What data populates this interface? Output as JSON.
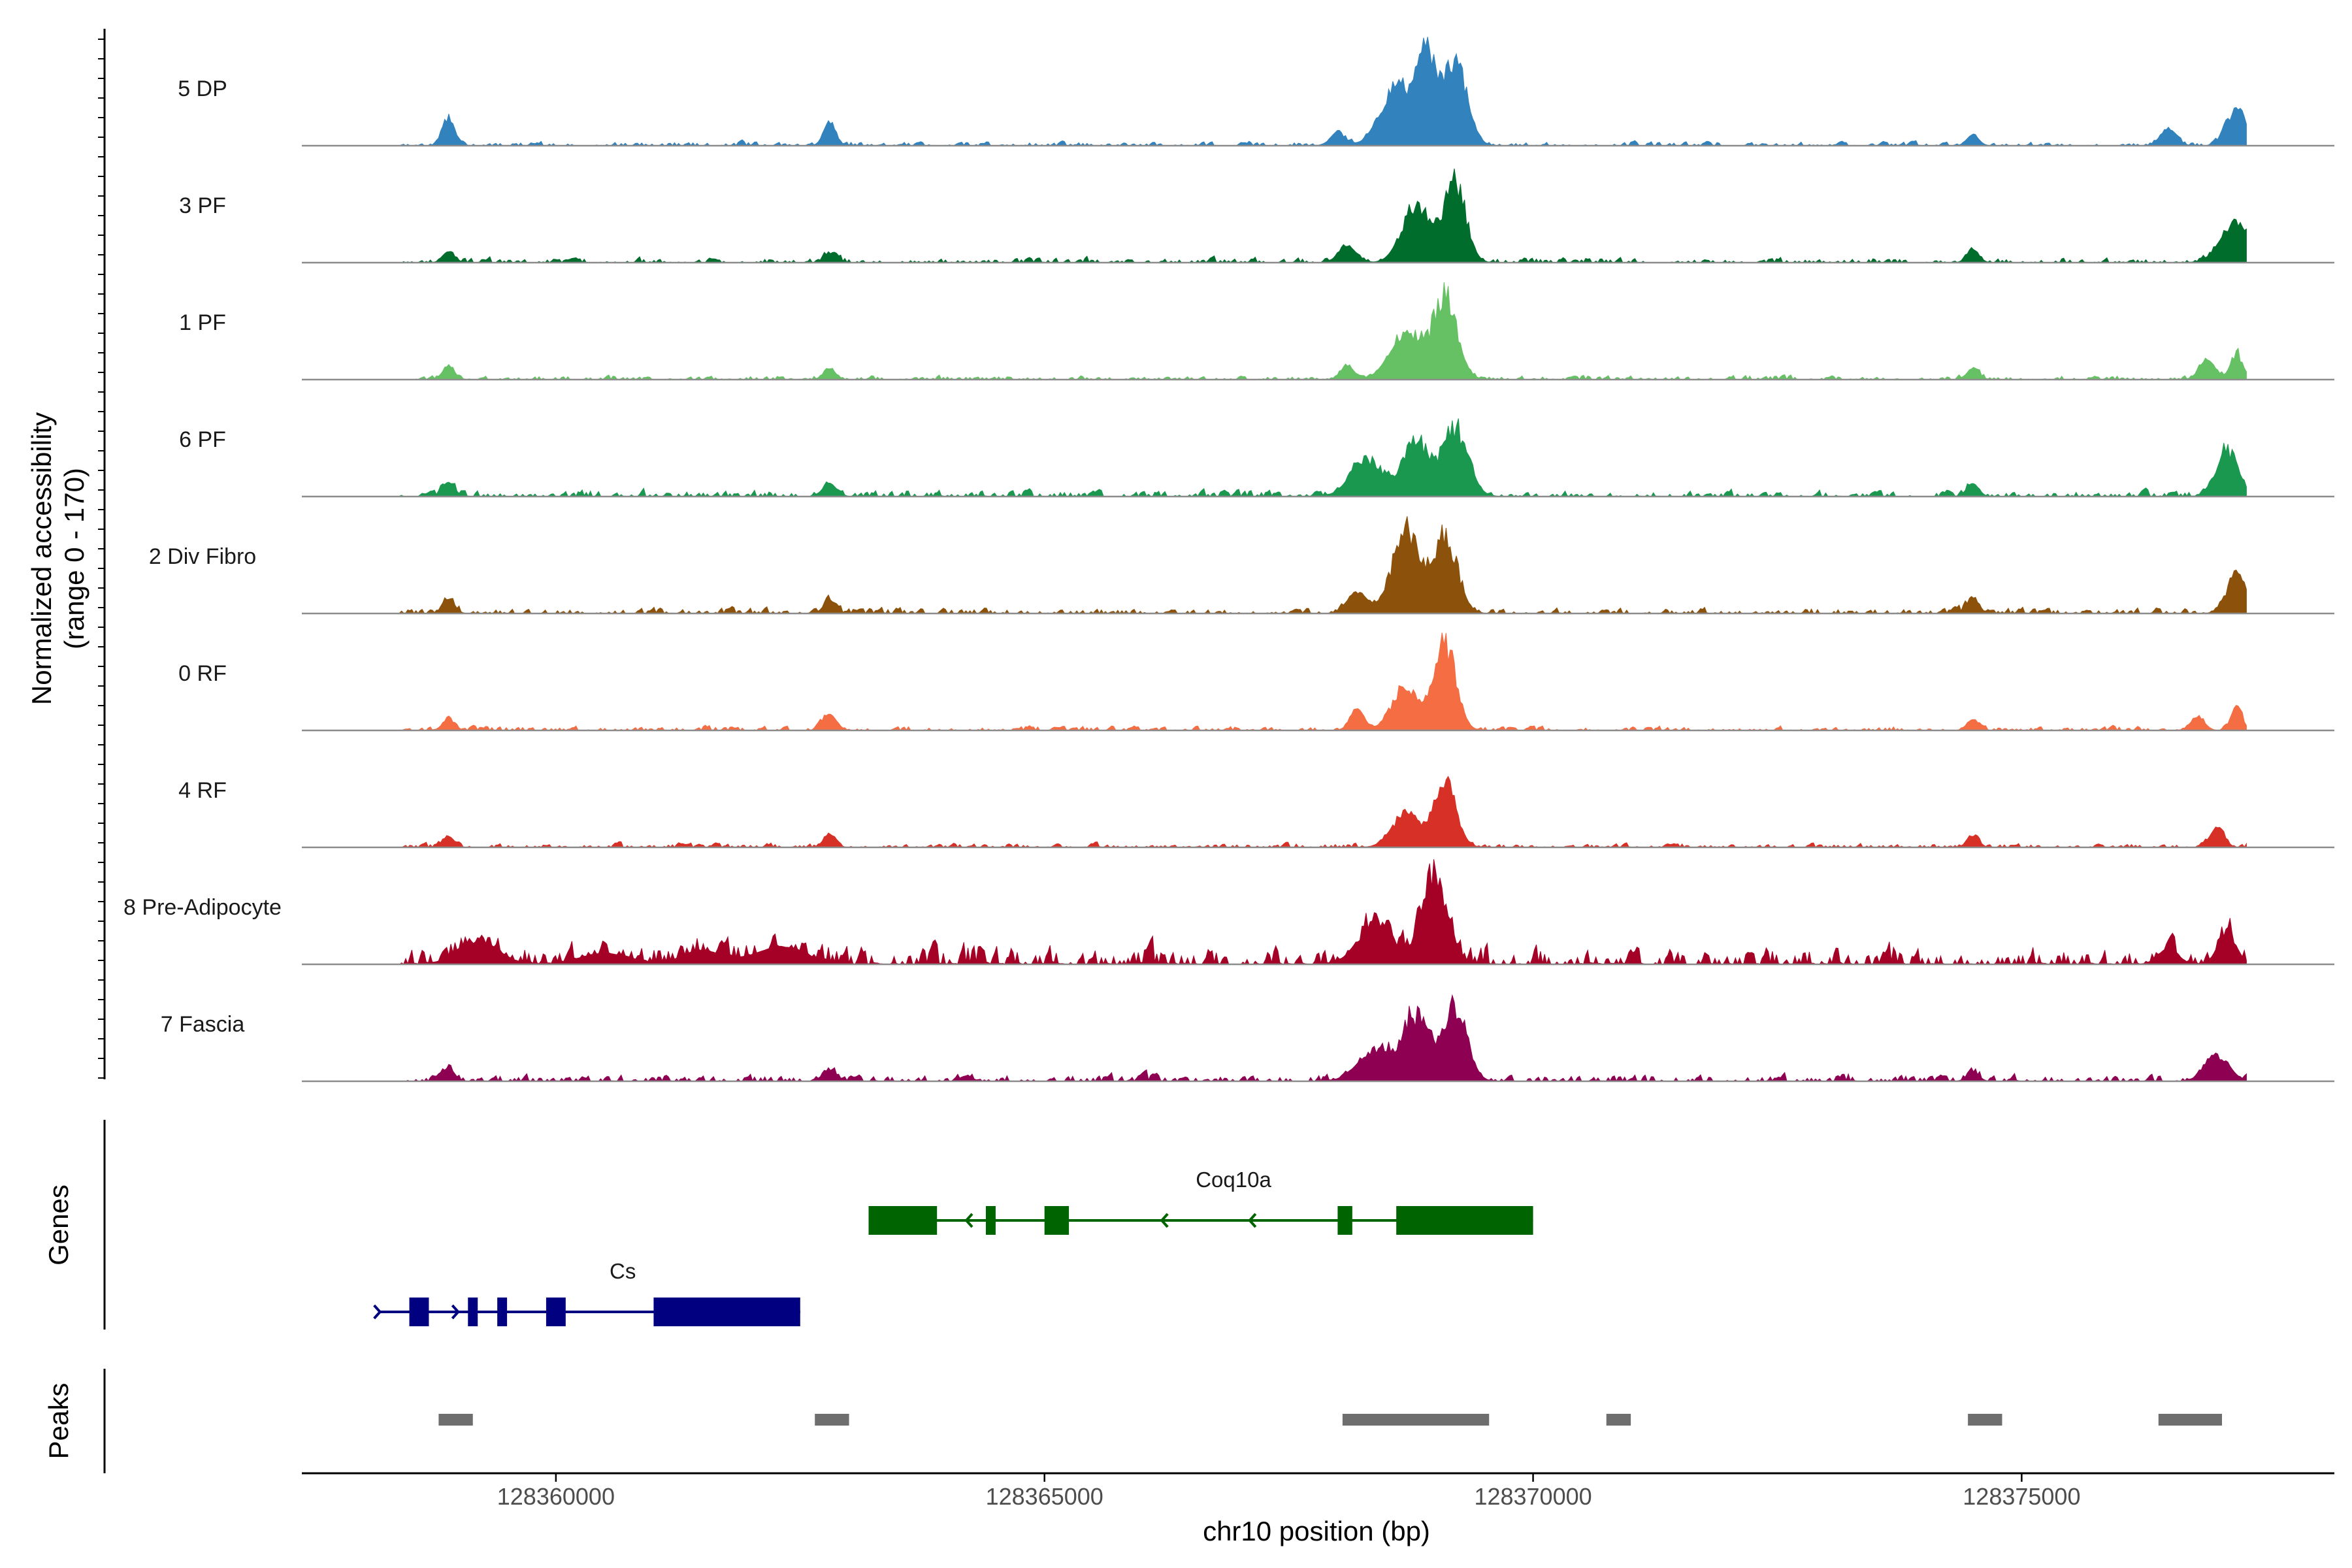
{
  "chart_data": {
    "type": "area",
    "ylabel": "Normalized accessibility",
    "ylabel_range": "(range 0 - 170)",
    "y_range": [
      0,
      170
    ],
    "xlabel": "chr10 position (bp)",
    "x_range": [
      128357400,
      128378200
    ],
    "x_ticks": [
      128360000,
      128365000,
      128370000,
      128375000
    ],
    "x_tick_labels": [
      "128360000",
      "128365000",
      "128370000",
      "128375000"
    ],
    "signal_start": 128358400,
    "signal_end": 128377300,
    "tracks": [
      {
        "name": "5 DP",
        "color": "#3182BD",
        "noise": 0.05,
        "profile": [
          [
            128358900,
            0.28,
            60
          ],
          [
            128362800,
            0.22,
            60
          ],
          [
            128368000,
            0.1,
            80
          ],
          [
            128368600,
            0.55,
            160
          ],
          [
            128368900,
            0.88,
            100
          ],
          [
            128369200,
            0.82,
            120
          ],
          [
            128374500,
            0.1,
            60
          ],
          [
            128376500,
            0.15,
            80
          ],
          [
            128377200,
            0.35,
            100
          ]
        ]
      },
      {
        "name": "3 PF",
        "color": "#006D2C",
        "noise": 0.06,
        "profile": [
          [
            128358900,
            0.1,
            60
          ],
          [
            128362800,
            0.08,
            60
          ],
          [
            128368100,
            0.15,
            90
          ],
          [
            128368800,
            0.55,
            140
          ],
          [
            128369200,
            0.75,
            110
          ],
          [
            128374500,
            0.12,
            60
          ],
          [
            128377200,
            0.4,
            150
          ]
        ]
      },
      {
        "name": "1 PF",
        "color": "#66C164",
        "noise": 0.05,
        "profile": [
          [
            128358900,
            0.12,
            60
          ],
          [
            128362800,
            0.1,
            60
          ],
          [
            128368100,
            0.12,
            70
          ],
          [
            128368700,
            0.45,
            160
          ],
          [
            128369100,
            0.8,
            120
          ],
          [
            128374500,
            0.1,
            60
          ],
          [
            128376900,
            0.18,
            80
          ],
          [
            128377200,
            0.25,
            60
          ]
        ]
      },
      {
        "name": "6 PF",
        "color": "#1A9850",
        "noise": 0.08,
        "profile": [
          [
            128358900,
            0.13,
            60
          ],
          [
            128362800,
            0.12,
            70
          ],
          [
            128368300,
            0.35,
            160
          ],
          [
            128368800,
            0.55,
            130
          ],
          [
            128369200,
            0.65,
            130
          ],
          [
            128374500,
            0.12,
            60
          ],
          [
            128377100,
            0.45,
            110
          ]
        ]
      },
      {
        "name": "2 Div Fibro",
        "color": "#8C510A",
        "noise": 0.07,
        "profile": [
          [
            128358900,
            0.13,
            60
          ],
          [
            128362800,
            0.12,
            60
          ],
          [
            128368200,
            0.2,
            100
          ],
          [
            128368700,
            0.78,
            140
          ],
          [
            128369100,
            0.75,
            120
          ],
          [
            128374500,
            0.14,
            60
          ],
          [
            128377200,
            0.38,
            100
          ]
        ]
      },
      {
        "name": "0 RF",
        "color": "#F46D43",
        "noise": 0.05,
        "profile": [
          [
            128358900,
            0.1,
            60
          ],
          [
            128362800,
            0.15,
            70
          ],
          [
            128368200,
            0.2,
            70
          ],
          [
            128368700,
            0.4,
            140
          ],
          [
            128369100,
            0.82,
            110
          ],
          [
            128374500,
            0.1,
            60
          ],
          [
            128376800,
            0.12,
            70
          ],
          [
            128377200,
            0.18,
            60
          ]
        ]
      },
      {
        "name": "4 RF",
        "color": "#D73027",
        "noise": 0.05,
        "profile": [
          [
            128358900,
            0.1,
            60
          ],
          [
            128362800,
            0.12,
            60
          ],
          [
            128368700,
            0.32,
            140
          ],
          [
            128369100,
            0.62,
            110
          ],
          [
            128374500,
            0.1,
            60
          ],
          [
            128377000,
            0.18,
            70
          ]
        ]
      },
      {
        "name": "8 Pre-Adipocyte",
        "color": "#A50026",
        "noise": 0.22,
        "profile": [
          [
            128359200,
            0.22,
            200
          ],
          [
            128360500,
            0.1,
            250
          ],
          [
            128361500,
            0.12,
            200
          ],
          [
            128362300,
            0.16,
            250
          ],
          [
            128368400,
            0.4,
            180
          ],
          [
            128369000,
            0.75,
            130
          ],
          [
            128376500,
            0.14,
            100
          ],
          [
            128377100,
            0.3,
            90
          ]
        ]
      },
      {
        "name": "7 Fascia",
        "color": "#8E0152",
        "noise": 0.08,
        "profile": [
          [
            128358900,
            0.12,
            60
          ],
          [
            128362800,
            0.1,
            70
          ],
          [
            128364200,
            0.05,
            60
          ],
          [
            128368400,
            0.3,
            180
          ],
          [
            128368800,
            0.6,
            130
          ],
          [
            128369200,
            0.72,
            120
          ],
          [
            128374500,
            0.08,
            60
          ],
          [
            128377000,
            0.25,
            120
          ]
        ]
      }
    ],
    "genes": [
      {
        "name": "Coq10a",
        "strand": "-",
        "color": "#006400",
        "start": 128363200,
        "end": 128370000,
        "exons": [
          [
            128363200,
            128363900,
            "tall"
          ],
          [
            128364400,
            128364500,
            "tall"
          ],
          [
            128365000,
            128365250,
            "tall"
          ],
          [
            128368000,
            128368150,
            "tall"
          ],
          [
            128368600,
            128370000,
            "tall"
          ]
        ],
        "arrows": [
          128364200,
          128366200,
          128367100
        ]
      },
      {
        "name": "Cs",
        "strand": "+",
        "color": "#000080",
        "start": 128358200,
        "end": 128362500,
        "exons": [
          [
            128358500,
            128358700,
            "tall"
          ],
          [
            128359100,
            128359200,
            "tall"
          ],
          [
            128359400,
            128359500,
            "tall"
          ],
          [
            128359900,
            128360100,
            "tall"
          ],
          [
            128361000,
            128362500,
            "tall"
          ]
        ],
        "arrows": [
          128358200,
          128359000
        ]
      }
    ],
    "genes_title": "Genes",
    "peaks_title": "Peaks",
    "peaks": [
      [
        128358800,
        128359150
      ],
      [
        128362650,
        128363000
      ],
      [
        128368050,
        128369550
      ],
      [
        128370750,
        128371000
      ],
      [
        128374450,
        128374800
      ],
      [
        128376400,
        128377050
      ]
    ],
    "peak_color": "#6E6E6E"
  }
}
